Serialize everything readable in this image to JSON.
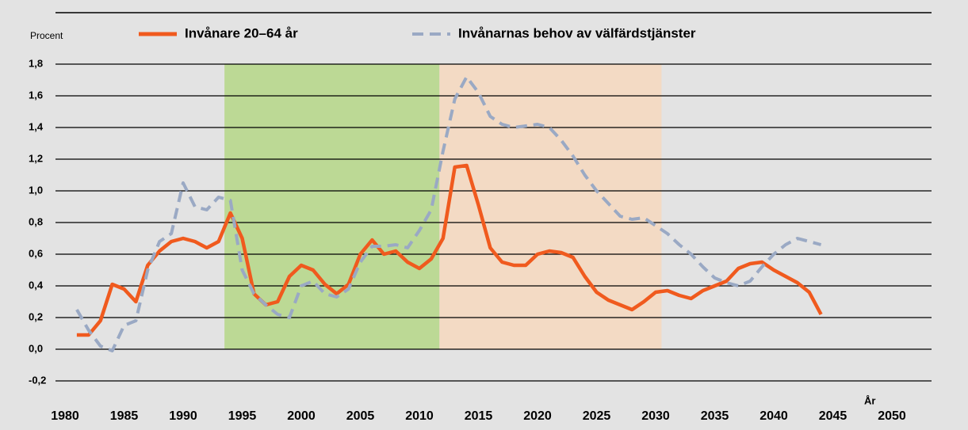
{
  "chart_data": {
    "type": "line",
    "y_axis_label": "Procent",
    "x_axis_label": "År",
    "x": [
      1981,
      1982,
      1983,
      1984,
      1985,
      1986,
      1987,
      1988,
      1989,
      1990,
      1991,
      1992,
      1993,
      1994,
      1995,
      1996,
      1997,
      1998,
      1999,
      2000,
      2001,
      2002,
      2003,
      2004,
      2005,
      2006,
      2007,
      2008,
      2009,
      2010,
      2011,
      2012,
      2013,
      2014,
      2015,
      2016,
      2017,
      2018,
      2019,
      2020,
      2021,
      2022,
      2023,
      2024,
      2025,
      2026,
      2027,
      2028,
      2029,
      2030,
      2031,
      2032,
      2033,
      2034,
      2035,
      2036,
      2037,
      2038,
      2039,
      2040,
      2041,
      2042,
      2043,
      2044
    ],
    "series": [
      {
        "name": "Invånare 20–64 år",
        "color": "#f05a1e",
        "dash": false,
        "values": [
          0.09,
          0.09,
          0.18,
          0.41,
          0.38,
          0.3,
          0.53,
          0.62,
          0.68,
          0.7,
          0.68,
          0.64,
          0.68,
          0.86,
          0.7,
          0.35,
          0.28,
          0.3,
          0.46,
          0.53,
          0.5,
          0.41,
          0.35,
          0.41,
          0.6,
          0.69,
          0.6,
          0.62,
          0.55,
          0.51,
          0.57,
          0.7,
          1.15,
          1.16,
          0.91,
          0.64,
          0.55,
          0.53,
          0.53,
          0.6,
          0.62,
          0.61,
          0.58,
          0.46,
          0.36,
          0.31,
          0.28,
          0.25,
          0.3,
          0.36,
          0.37,
          0.34,
          0.32,
          0.37,
          0.4,
          0.43,
          0.51,
          0.54,
          0.55,
          0.5,
          0.46,
          0.42,
          0.36,
          0.22
        ]
      },
      {
        "name": "Invånarnas behov av välfärdstjänster",
        "color": "#9aa9c4",
        "dash": true,
        "values": [
          0.25,
          0.12,
          0.02,
          -0.01,
          0.15,
          0.18,
          0.5,
          0.68,
          0.73,
          1.05,
          0.9,
          0.88,
          0.96,
          0.94,
          0.5,
          0.35,
          0.28,
          0.22,
          0.2,
          0.4,
          0.43,
          0.35,
          0.33,
          0.38,
          0.55,
          0.65,
          0.65,
          0.66,
          0.64,
          0.75,
          0.88,
          1.25,
          1.58,
          1.72,
          1.62,
          1.47,
          1.42,
          1.4,
          1.41,
          1.42,
          1.4,
          1.32,
          1.22,
          1.1,
          1.0,
          0.92,
          0.84,
          0.82,
          0.83,
          0.78,
          0.73,
          0.66,
          0.6,
          0.52,
          0.45,
          0.42,
          0.4,
          0.43,
          0.52,
          0.6,
          0.66,
          0.7,
          0.68,
          0.66
        ]
      }
    ],
    "bands": [
      {
        "from": 1993.5,
        "to": 2011.7,
        "y_from": 0,
        "y_to": 1.8,
        "color": "#bcd995"
      },
      {
        "from": 2011.7,
        "to": 2030.5,
        "y_from": 0,
        "y_to": 1.8,
        "color": "#f3dac4"
      }
    ],
    "xlim": [
      1980,
      2050
    ],
    "xticks": [
      1980,
      1985,
      1990,
      1995,
      2000,
      2005,
      2010,
      2015,
      2020,
      2025,
      2030,
      2035,
      2040,
      2045,
      2050
    ],
    "ylim": [
      -0.2,
      1.8
    ],
    "yticks": [
      {
        "value": -0.2,
        "label": "-0,2"
      },
      {
        "value": 0,
        "label": "0,0"
      },
      {
        "value": 0.2,
        "label": "0,2"
      },
      {
        "value": 0.4,
        "label": "0,4"
      },
      {
        "value": 0.6,
        "label": "0,6"
      },
      {
        "value": 0.8,
        "label": "0,8"
      },
      {
        "value": 1.0,
        "label": "1,0"
      },
      {
        "value": 1.2,
        "label": "1,2"
      },
      {
        "value": 1.4,
        "label": "1,4"
      },
      {
        "value": 1.6,
        "label": "1,6"
      },
      {
        "value": 1.8,
        "label": "1,8"
      }
    ],
    "grid": true
  }
}
